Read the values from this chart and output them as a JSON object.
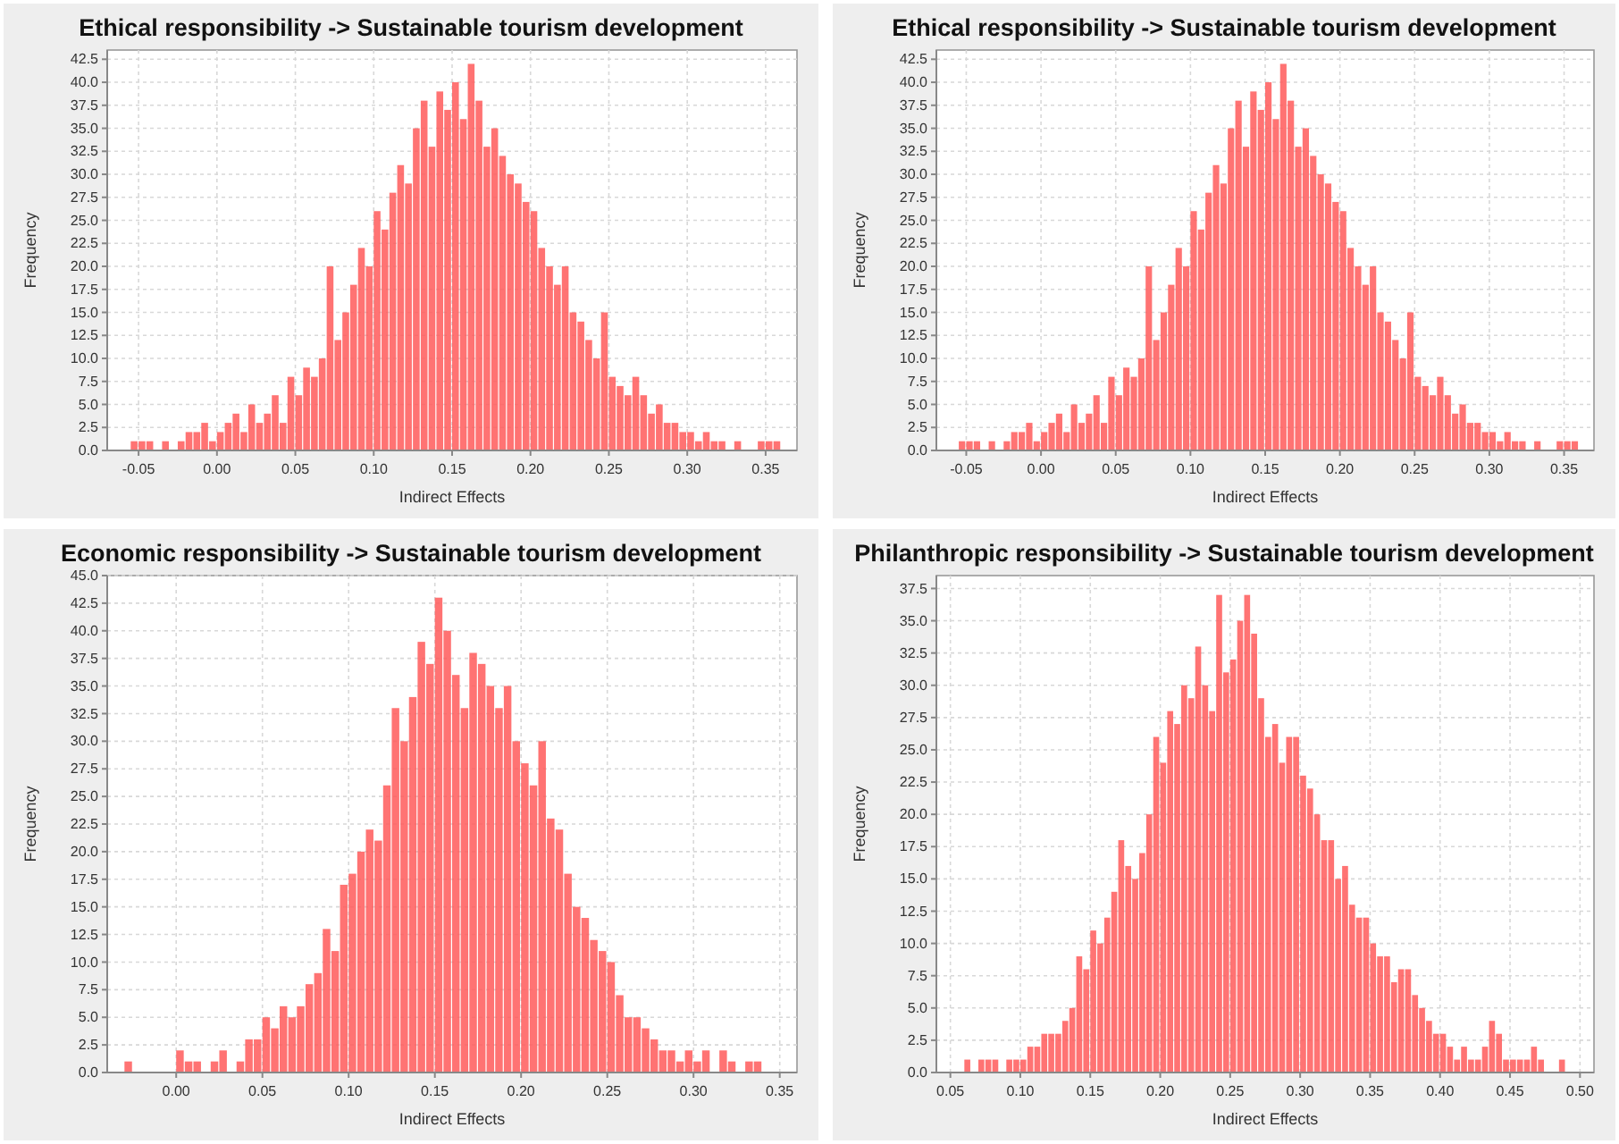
{
  "chart_data": [
    {
      "type": "histogram",
      "title": "Ethical responsibility -> Sustainable tourism development",
      "xlabel": "Indirect Effects",
      "ylabel": "Frequency",
      "color": "#ff5a5a",
      "grid": true,
      "bins": [
        -0.06,
        -0.055,
        -0.05,
        -0.045,
        -0.04,
        -0.035,
        -0.03,
        -0.025,
        -0.02,
        -0.015,
        -0.01,
        -0.005,
        0,
        0.005,
        0.01,
        0.015,
        0.02,
        0.025,
        0.03,
        0.035,
        0.04,
        0.045,
        0.05,
        0.055,
        0.06,
        0.065,
        0.07,
        0.075,
        0.08,
        0.085,
        0.09,
        0.095,
        0.1,
        0.105,
        0.11,
        0.115,
        0.12,
        0.125,
        0.13,
        0.135,
        0.14,
        0.145,
        0.15,
        0.155,
        0.16,
        0.165,
        0.17,
        0.175,
        0.18,
        0.185,
        0.19,
        0.195,
        0.2,
        0.205,
        0.21,
        0.215,
        0.22,
        0.225,
        0.23,
        0.235,
        0.24,
        0.245,
        0.25,
        0.255,
        0.26,
        0.265,
        0.27,
        0.275,
        0.28,
        0.285,
        0.29,
        0.295,
        0.3,
        0.305,
        0.31,
        0.315,
        0.32,
        0.325,
        0.33,
        0.335,
        0.34,
        0.345,
        0.35,
        0.355,
        0.36
      ],
      "values": [
        0,
        1,
        1,
        1,
        0,
        1,
        0,
        1,
        2,
        2,
        3,
        1,
        2,
        3,
        4,
        2,
        5,
        3,
        4,
        6,
        3,
        8,
        6,
        9,
        8,
        10,
        20,
        12,
        15,
        18,
        22,
        20,
        26,
        24,
        28,
        31,
        29,
        35,
        38,
        33,
        39,
        37,
        40,
        36,
        42,
        38,
        33,
        35,
        32,
        30,
        29,
        27,
        26,
        22,
        20,
        18,
        20,
        15,
        14,
        12,
        10,
        15,
        8,
        7,
        6,
        8,
        6,
        4,
        5,
        3,
        3,
        2,
        2,
        1,
        2,
        1,
        1,
        0,
        1,
        0,
        0,
        1,
        1,
        1
      ],
      "xlim": [
        -0.07,
        0.37
      ],
      "ylim": [
        0,
        43.5
      ],
      "xticks": [
        {
          "value": -0.05,
          "label": "-0.05"
        },
        {
          "value": 0,
          "label": "0.00"
        },
        {
          "value": 0.05,
          "label": "0.05"
        },
        {
          "value": 0.1,
          "label": "0.10"
        },
        {
          "value": 0.15,
          "label": "0.15"
        },
        {
          "value": 0.2,
          "label": "0.20"
        },
        {
          "value": 0.25,
          "label": "0.25"
        },
        {
          "value": 0.3,
          "label": "0.30"
        },
        {
          "value": 0.35,
          "label": "0.35"
        }
      ],
      "yticks": [
        {
          "value": 0,
          "label": "0.0"
        },
        2.5,
        {
          "value": 5,
          "label": "5.0"
        },
        7.5,
        {
          "value": 10,
          "label": "10.0"
        },
        12.5,
        {
          "value": 15,
          "label": "15.0"
        },
        17.5,
        {
          "value": 20,
          "label": "20.0"
        },
        22.5,
        {
          "value": 25,
          "label": "25.0"
        },
        27.5,
        {
          "value": 30,
          "label": "30.0"
        },
        32.5,
        {
          "value": 35,
          "label": "35.0"
        },
        37.5,
        {
          "value": 40,
          "label": "40.0"
        },
        42.5
      ]
    },
    {
      "type": "histogram",
      "title": "Ethical responsibility -> Sustainable tourism development",
      "xlabel": "Indirect Effects",
      "ylabel": "Frequency",
      "color": "#ff5a5a",
      "grid": true,
      "bins": [
        -0.06,
        -0.055,
        -0.05,
        -0.045,
        -0.04,
        -0.035,
        -0.03,
        -0.025,
        -0.02,
        -0.015,
        -0.01,
        -0.005,
        0,
        0.005,
        0.01,
        0.015,
        0.02,
        0.025,
        0.03,
        0.035,
        0.04,
        0.045,
        0.05,
        0.055,
        0.06,
        0.065,
        0.07,
        0.075,
        0.08,
        0.085,
        0.09,
        0.095,
        0.1,
        0.105,
        0.11,
        0.115,
        0.12,
        0.125,
        0.13,
        0.135,
        0.14,
        0.145,
        0.15,
        0.155,
        0.16,
        0.165,
        0.17,
        0.175,
        0.18,
        0.185,
        0.19,
        0.195,
        0.2,
        0.205,
        0.21,
        0.215,
        0.22,
        0.225,
        0.23,
        0.235,
        0.24,
        0.245,
        0.25,
        0.255,
        0.26,
        0.265,
        0.27,
        0.275,
        0.28,
        0.285,
        0.29,
        0.295,
        0.3,
        0.305,
        0.31,
        0.315,
        0.32,
        0.325,
        0.33,
        0.335,
        0.34,
        0.345,
        0.35,
        0.355,
        0.36
      ],
      "values": [
        0,
        1,
        1,
        1,
        0,
        1,
        0,
        1,
        2,
        2,
        3,
        1,
        2,
        3,
        4,
        2,
        5,
        3,
        4,
        6,
        3,
        8,
        6,
        9,
        8,
        10,
        20,
        12,
        15,
        18,
        22,
        20,
        26,
        24,
        28,
        31,
        29,
        35,
        38,
        33,
        39,
        37,
        40,
        36,
        42,
        38,
        33,
        35,
        32,
        30,
        29,
        27,
        26,
        22,
        20,
        18,
        20,
        15,
        14,
        12,
        10,
        15,
        8,
        7,
        6,
        8,
        6,
        4,
        5,
        3,
        3,
        2,
        2,
        1,
        2,
        1,
        1,
        0,
        1,
        0,
        0,
        1,
        1,
        1
      ],
      "xlim": [
        -0.07,
        0.37
      ],
      "ylim": [
        0,
        43.5
      ],
      "xticks": [
        {
          "value": -0.05,
          "label": "-0.05"
        },
        {
          "value": 0,
          "label": "0.00"
        },
        {
          "value": 0.05,
          "label": "0.05"
        },
        {
          "value": 0.1,
          "label": "0.10"
        },
        {
          "value": 0.15,
          "label": "0.15"
        },
        {
          "value": 0.2,
          "label": "0.20"
        },
        {
          "value": 0.25,
          "label": "0.25"
        },
        {
          "value": 0.3,
          "label": "0.30"
        },
        {
          "value": 0.35,
          "label": "0.35"
        }
      ],
      "yticks": [
        {
          "value": 0,
          "label": "0.0"
        },
        2.5,
        {
          "value": 5,
          "label": "5.0"
        },
        7.5,
        {
          "value": 10,
          "label": "10.0"
        },
        12.5,
        {
          "value": 15,
          "label": "15.0"
        },
        17.5,
        {
          "value": 20,
          "label": "20.0"
        },
        22.5,
        {
          "value": 25,
          "label": "25.0"
        },
        27.5,
        {
          "value": 30,
          "label": "30.0"
        },
        32.5,
        {
          "value": 35,
          "label": "35.0"
        },
        37.5,
        {
          "value": 40,
          "label": "40.0"
        },
        42.5
      ]
    },
    {
      "type": "histogram",
      "title": "Economic responsibility -> Sustainable tourism development",
      "xlabel": "Indirect Effects",
      "ylabel": "Frequency",
      "color": "#ff5a5a",
      "grid": true,
      "bins": [
        -0.03,
        -0.025,
        -0.02,
        -0.015,
        -0.01,
        -0.005,
        0,
        0.005,
        0.01,
        0.015,
        0.02,
        0.025,
        0.03,
        0.035,
        0.04,
        0.045,
        0.05,
        0.055,
        0.06,
        0.065,
        0.07,
        0.075,
        0.08,
        0.085,
        0.09,
        0.095,
        0.1,
        0.105,
        0.11,
        0.115,
        0.12,
        0.125,
        0.13,
        0.135,
        0.14,
        0.145,
        0.15,
        0.155,
        0.16,
        0.165,
        0.17,
        0.175,
        0.18,
        0.185,
        0.19,
        0.195,
        0.2,
        0.205,
        0.21,
        0.215,
        0.22,
        0.225,
        0.23,
        0.235,
        0.24,
        0.245,
        0.25,
        0.255,
        0.26,
        0.265,
        0.27,
        0.275,
        0.28,
        0.285,
        0.29,
        0.295,
        0.3,
        0.305,
        0.31,
        0.315,
        0.32,
        0.325,
        0.33,
        0.335,
        0.34
      ],
      "values": [
        1,
        0,
        0,
        0,
        0,
        0,
        2,
        1,
        1,
        0,
        1,
        2,
        0,
        1,
        3,
        3,
        5,
        4,
        6,
        5,
        6,
        8,
        9,
        13,
        11,
        17,
        18,
        20,
        22,
        21,
        26,
        33,
        30,
        34,
        39,
        37,
        43,
        40,
        36,
        33,
        38,
        37,
        35,
        33,
        35,
        30,
        28,
        26,
        30,
        23,
        22,
        18,
        15,
        14,
        12,
        11,
        10,
        7,
        5,
        5,
        4,
        3,
        2,
        2,
        1,
        2,
        1,
        2,
        0,
        2,
        1,
        0,
        1,
        1
      ],
      "xlim": [
        -0.04,
        0.36
      ],
      "ylim": [
        0,
        45
      ],
      "xticks": [
        {
          "value": 0,
          "label": "0.00"
        },
        {
          "value": 0.05,
          "label": "0.05"
        },
        {
          "value": 0.1,
          "label": "0.10"
        },
        {
          "value": 0.15,
          "label": "0.15"
        },
        {
          "value": 0.2,
          "label": "0.20"
        },
        {
          "value": 0.25,
          "label": "0.25"
        },
        {
          "value": 0.3,
          "label": "0.30"
        },
        {
          "value": 0.35,
          "label": "0.35"
        }
      ],
      "yticks": [
        {
          "value": 0,
          "label": "0.0"
        },
        2.5,
        {
          "value": 5,
          "label": "5.0"
        },
        7.5,
        {
          "value": 10,
          "label": "10.0"
        },
        12.5,
        {
          "value": 15,
          "label": "15.0"
        },
        17.5,
        {
          "value": 20,
          "label": "20.0"
        },
        22.5,
        {
          "value": 25,
          "label": "25.0"
        },
        27.5,
        {
          "value": 30,
          "label": "30.0"
        },
        32.5,
        {
          "value": 35,
          "label": "35.0"
        },
        37.5,
        {
          "value": 40,
          "label": "40.0"
        },
        42.5,
        {
          "value": 45,
          "label": "45.0"
        }
      ]
    },
    {
      "type": "histogram",
      "title": "Philanthropic responsibility -> Sustainable tourism development",
      "xlabel": "Indirect Effects",
      "ylabel": "Frequency",
      "color": "#ff5a5a",
      "grid": true,
      "bins": [
        0.06,
        0.065,
        0.07,
        0.075,
        0.08,
        0.085,
        0.09,
        0.095,
        0.1,
        0.105,
        0.11,
        0.115,
        0.12,
        0.125,
        0.13,
        0.135,
        0.14,
        0.145,
        0.15,
        0.155,
        0.16,
        0.165,
        0.17,
        0.175,
        0.18,
        0.185,
        0.19,
        0.195,
        0.2,
        0.205,
        0.21,
        0.215,
        0.22,
        0.225,
        0.23,
        0.235,
        0.24,
        0.245,
        0.25,
        0.255,
        0.26,
        0.265,
        0.27,
        0.275,
        0.28,
        0.285,
        0.29,
        0.295,
        0.3,
        0.305,
        0.31,
        0.315,
        0.32,
        0.325,
        0.33,
        0.335,
        0.34,
        0.345,
        0.35,
        0.355,
        0.36,
        0.365,
        0.37,
        0.375,
        0.38,
        0.385,
        0.39,
        0.395,
        0.4,
        0.405,
        0.41,
        0.415,
        0.42,
        0.425,
        0.43,
        0.435,
        0.44,
        0.445,
        0.45,
        0.455,
        0.46,
        0.465,
        0.47,
        0.475,
        0.48,
        0.485,
        0.49
      ],
      "values": [
        1,
        0,
        1,
        1,
        1,
        0,
        1,
        1,
        1,
        2,
        2,
        3,
        3,
        3,
        4,
        5,
        9,
        8,
        11,
        10,
        12,
        14,
        18,
        16,
        15,
        17,
        20,
        26,
        24,
        28,
        27,
        30,
        29,
        33,
        30,
        28,
        37,
        31,
        32,
        35,
        37,
        34,
        29,
        26,
        27,
        24,
        26,
        26,
        23,
        22,
        20,
        18,
        18,
        15,
        16,
        13,
        12,
        12,
        10,
        9,
        9,
        7,
        8,
        8,
        6,
        5,
        4,
        3,
        3,
        2,
        1,
        2,
        1,
        1,
        2,
        4,
        3,
        1,
        1,
        1,
        1,
        2,
        1,
        0,
        0,
        1
      ],
      "xlim": [
        0.04,
        0.51
      ],
      "ylim": [
        0,
        38.5
      ],
      "xticks": [
        {
          "value": 0.05,
          "label": "0.05"
        },
        {
          "value": 0.1,
          "label": "0.10"
        },
        {
          "value": 0.15,
          "label": "0.15"
        },
        {
          "value": 0.2,
          "label": "0.20"
        },
        {
          "value": 0.25,
          "label": "0.25"
        },
        {
          "value": 0.3,
          "label": "0.30"
        },
        {
          "value": 0.35,
          "label": "0.35"
        },
        {
          "value": 0.4,
          "label": "0.40"
        },
        {
          "value": 0.45,
          "label": "0.45"
        },
        {
          "value": 0.5,
          "label": "0.50"
        }
      ],
      "yticks": [
        {
          "value": 0,
          "label": "0.0"
        },
        2.5,
        {
          "value": 5,
          "label": "5.0"
        },
        7.5,
        {
          "value": 10,
          "label": "10.0"
        },
        12.5,
        {
          "value": 15,
          "label": "15.0"
        },
        17.5,
        {
          "value": 20,
          "label": "20.0"
        },
        22.5,
        {
          "value": 25,
          "label": "25.0"
        },
        27.5,
        {
          "value": 30,
          "label": "30.0"
        },
        32.5,
        {
          "value": 35,
          "label": "35.0"
        },
        37.5
      ]
    }
  ]
}
